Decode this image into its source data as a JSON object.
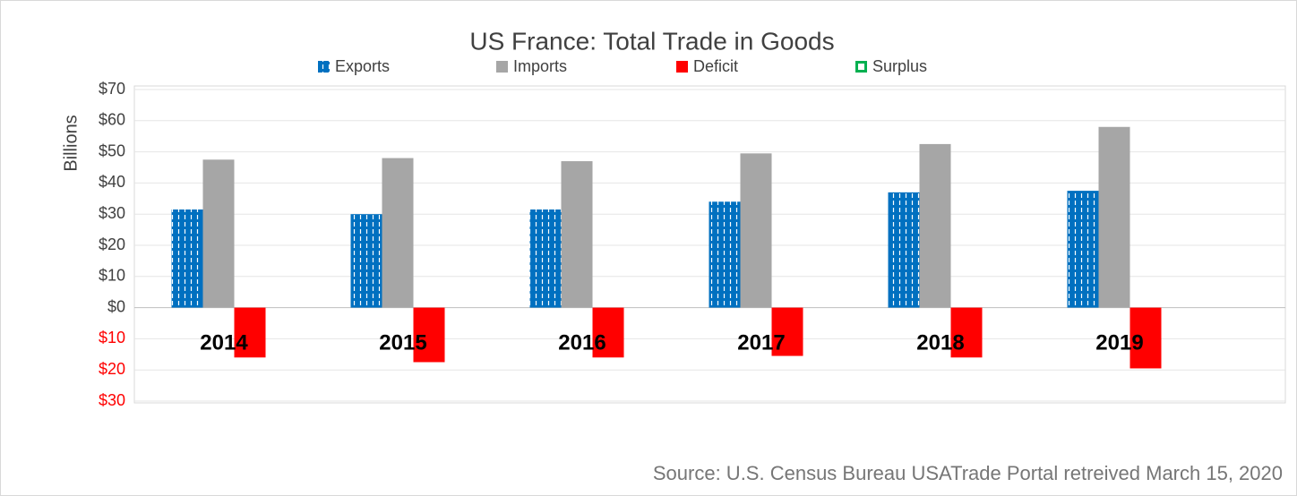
{
  "chart_data": {
    "type": "bar",
    "title": "US France: Total Trade in Goods",
    "y_axis_label": "Billions",
    "source": "Source: U.S. Census  Bureau USATrade Portal retreived March 15, 2020",
    "categories": [
      "2014",
      "2015",
      "2016",
      "2017",
      "2018",
      "2019"
    ],
    "series": [
      {
        "name": "Exports",
        "color": "#0070c0",
        "pattern": "dashed-vertical",
        "values": [
          31.5,
          30,
          31.5,
          34,
          37,
          37.5
        ]
      },
      {
        "name": "Imports",
        "color": "#a6a6a6",
        "values": [
          47.5,
          48,
          47,
          49.5,
          52.5,
          58
        ]
      },
      {
        "name": "Deficit",
        "color": "#ff0000",
        "values": [
          -16,
          -17.5,
          -16,
          -15.5,
          -16,
          -19.5
        ]
      },
      {
        "name": "Surplus",
        "color": "#00b050",
        "hollow": true,
        "values": [
          null,
          null,
          null,
          null,
          null,
          null
        ]
      }
    ],
    "ylim": [
      -30,
      70
    ],
    "yticks": [
      {
        "value": -30,
        "label": "$30"
      },
      {
        "value": -20,
        "label": "$20"
      },
      {
        "value": -10,
        "label": "$10"
      },
      {
        "value": 0,
        "label": "$0"
      },
      {
        "value": 10,
        "label": "$10"
      },
      {
        "value": 20,
        "label": "$20"
      },
      {
        "value": 30,
        "label": "$30"
      },
      {
        "value": 40,
        "label": "$40"
      },
      {
        "value": 50,
        "label": "$50"
      },
      {
        "value": 60,
        "label": "$60"
      },
      {
        "value": 70,
        "label": "$70"
      }
    ],
    "negative_tick_color": "#ff0000",
    "grid": true
  }
}
